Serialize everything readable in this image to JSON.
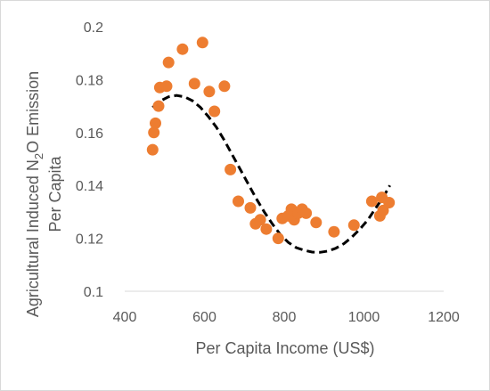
{
  "chart_data": {
    "type": "scatter",
    "title": "",
    "xlabel": "Per Capita Income (US$)",
    "ylabel_line1_prefix": "Agricultural Induced N",
    "ylabel_line1_subscript": "2",
    "ylabel_line1_suffix": "O Emission",
    "ylabel_line2": "Per Capita",
    "xlim": [
      400,
      1200
    ],
    "ylim": [
      0.1,
      0.2
    ],
    "x_ticks": [
      400,
      600,
      800,
      1000,
      1200
    ],
    "x_tick_labels": [
      "400",
      "600",
      "800",
      "1000",
      "1200"
    ],
    "y_ticks": [
      0.1,
      0.12,
      0.14,
      0.16,
      0.18,
      0.2
    ],
    "y_tick_labels": [
      "0.1",
      "0.12",
      "0.14",
      "0.16",
      "0.18",
      "0.2"
    ],
    "grid": false,
    "legend": "none",
    "series": [
      {
        "kind": "scatter",
        "color": "#ED7D31",
        "points": [
          [
            470,
            0.1535
          ],
          [
            473,
            0.16
          ],
          [
            477,
            0.1635
          ],
          [
            485,
            0.17
          ],
          [
            488,
            0.177
          ],
          [
            505,
            0.1775
          ],
          [
            510,
            0.1865
          ],
          [
            545,
            0.1915
          ],
          [
            575,
            0.1785
          ],
          [
            595,
            0.194
          ],
          [
            612,
            0.1755
          ],
          [
            625,
            0.168
          ],
          [
            650,
            0.1775
          ],
          [
            665,
            0.146
          ],
          [
            685,
            0.134
          ],
          [
            715,
            0.1315
          ],
          [
            728,
            0.1255
          ],
          [
            740,
            0.127
          ],
          [
            755,
            0.1235
          ],
          [
            785,
            0.12
          ],
          [
            795,
            0.1275
          ],
          [
            810,
            0.1285
          ],
          [
            818,
            0.131
          ],
          [
            825,
            0.127
          ],
          [
            835,
            0.1295
          ],
          [
            845,
            0.131
          ],
          [
            855,
            0.1295
          ],
          [
            880,
            0.126
          ],
          [
            925,
            0.1225
          ],
          [
            975,
            0.125
          ],
          [
            1020,
            0.134
          ],
          [
            1040,
            0.1285
          ],
          [
            1045,
            0.1355
          ],
          [
            1048,
            0.1305
          ],
          [
            1063,
            0.1335
          ]
        ]
      },
      {
        "kind": "trendline",
        "style": "dashed",
        "color": "#000000",
        "points": [
          [
            470,
            0.1695
          ],
          [
            490,
            0.172
          ],
          [
            510,
            0.1735
          ],
          [
            530,
            0.174
          ],
          [
            550,
            0.1735
          ],
          [
            570,
            0.172
          ],
          [
            590,
            0.1695
          ],
          [
            610,
            0.166
          ],
          [
            630,
            0.162
          ],
          [
            650,
            0.157
          ],
          [
            670,
            0.1515
          ],
          [
            690,
            0.146
          ],
          [
            710,
            0.1405
          ],
          [
            730,
            0.135
          ],
          [
            750,
            0.13
          ],
          [
            770,
            0.1255
          ],
          [
            790,
            0.1215
          ],
          [
            810,
            0.1185
          ],
          [
            830,
            0.1165
          ],
          [
            850,
            0.1155
          ],
          [
            870,
            0.1148
          ],
          [
            890,
            0.1147
          ],
          [
            910,
            0.1152
          ],
          [
            930,
            0.1163
          ],
          [
            950,
            0.118
          ],
          [
            970,
            0.1205
          ],
          [
            990,
            0.1235
          ],
          [
            1010,
            0.127
          ],
          [
            1030,
            0.1315
          ],
          [
            1050,
            0.136
          ],
          [
            1065,
            0.14
          ]
        ]
      }
    ]
  }
}
